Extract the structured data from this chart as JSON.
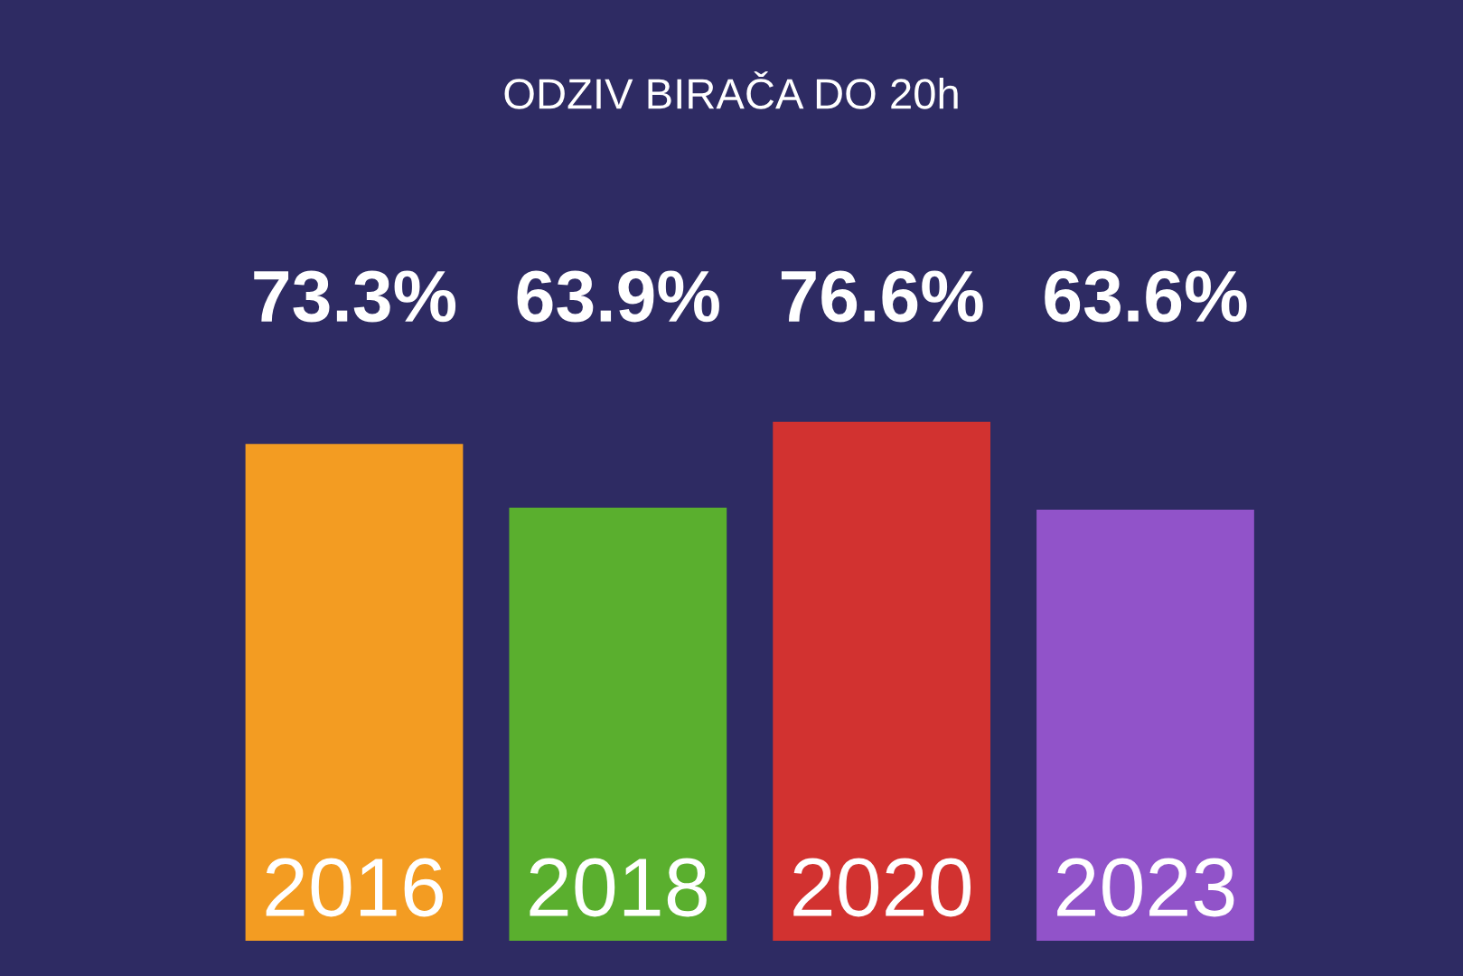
{
  "chart_data": {
    "type": "bar",
    "title": "ODZIV BIRAČA DO 20h",
    "categories": [
      "2016",
      "2018",
      "2020",
      "2023"
    ],
    "values": [
      73.3,
      63.9,
      76.6,
      63.6
    ],
    "value_labels": [
      "73.3%",
      "63.9%",
      "76.6%",
      "63.6%"
    ],
    "colors": [
      "#f39c22",
      "#5aaf2e",
      "#d23230",
      "#9153c9"
    ]
  }
}
